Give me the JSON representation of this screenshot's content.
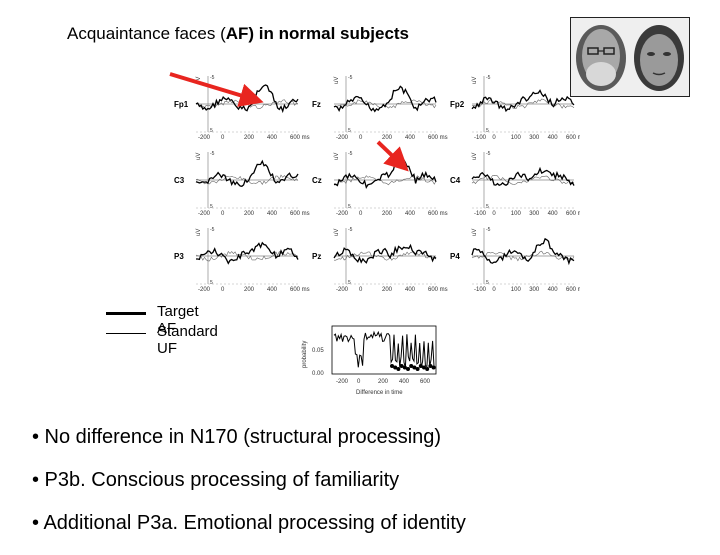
{
  "title": {
    "prefix": "Acquaintance faces (",
    "bold": "AF) in normal subjects"
  },
  "faces_photo": {
    "icon": "two-face-photographs-icon"
  },
  "erp_panel": {
    "y_unit": "uV",
    "electrodes": [
      [
        "Fp1",
        "Fz",
        "Fp2"
      ],
      [
        "C3",
        "Cz",
        "C4"
      ],
      [
        "P3",
        "Pz",
        "P4"
      ]
    ],
    "x_ticks": [
      "-200",
      "0",
      "200",
      "400",
      "600 ms"
    ],
    "x_ticks_alt": [
      "-200",
      "0",
      "200",
      "400",
      "600 ms"
    ],
    "x_ticks_right": [
      "-100",
      "0",
      "100",
      "300",
      "400",
      "600 ms"
    ],
    "y_ticks": [
      "-5",
      "0",
      "5"
    ],
    "arrow_color": "#e8251f"
  },
  "legend": {
    "target_label": "Target AF",
    "standard_label": "Standard UF"
  },
  "probability_plot": {
    "ylabel": "probability",
    "y_ticks": [
      "0.05",
      "0.00"
    ],
    "x_ticks": [
      "-200",
      "0",
      "200",
      "400",
      "600"
    ],
    "xlabel": "Difference in time"
  },
  "bullets": [
    "• No difference in N170 (structural processing)",
    "• P3b. Conscious processing of familiarity",
    "• Additional P3a. Emotional processing of identity"
  ]
}
